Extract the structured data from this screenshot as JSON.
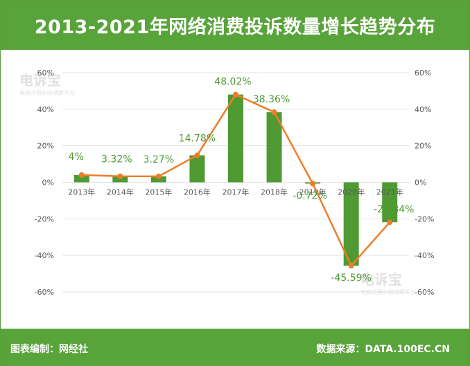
{
  "title": "2013-2021年网络消费投诉数量增长趋势分布",
  "footer": {
    "left": "图表编制：网经社",
    "right": "数据来源：DATA.100EC.CN"
  },
  "watermark": {
    "brand": "电诉宝",
    "sub": "电商消费纠纷调解平台"
  },
  "colors": {
    "bar": "#4f9a33",
    "line": "#f07c2a",
    "label": "#4f9a33",
    "header": "#58a33a"
  },
  "chart_data": {
    "type": "bar",
    "categories": [
      "2013年",
      "2014年",
      "2015年",
      "2016年",
      "2017年",
      "2018年",
      "2019年",
      "2020年",
      "2021年"
    ],
    "values": [
      4,
      3.32,
      3.27,
      14.78,
      48.02,
      38.36,
      -0.72,
      -45.59,
      -21.84
    ],
    "data_labels": [
      "4%",
      "3.32%",
      "3.27%",
      "14.78%",
      "48.02%",
      "38.36%",
      "-0.72%",
      "-45.59%",
      "-21.84%"
    ],
    "overlay_line_same_values": true,
    "ylim": [
      -60,
      60
    ],
    "yticks": [
      "60%",
      "40%",
      "20%",
      "0%",
      "-20%",
      "-40%",
      "-60%"
    ],
    "ytick_values": [
      60,
      40,
      20,
      0,
      -20,
      -40,
      -60
    ],
    "dual_axis_same_scale": true,
    "grid": true
  }
}
